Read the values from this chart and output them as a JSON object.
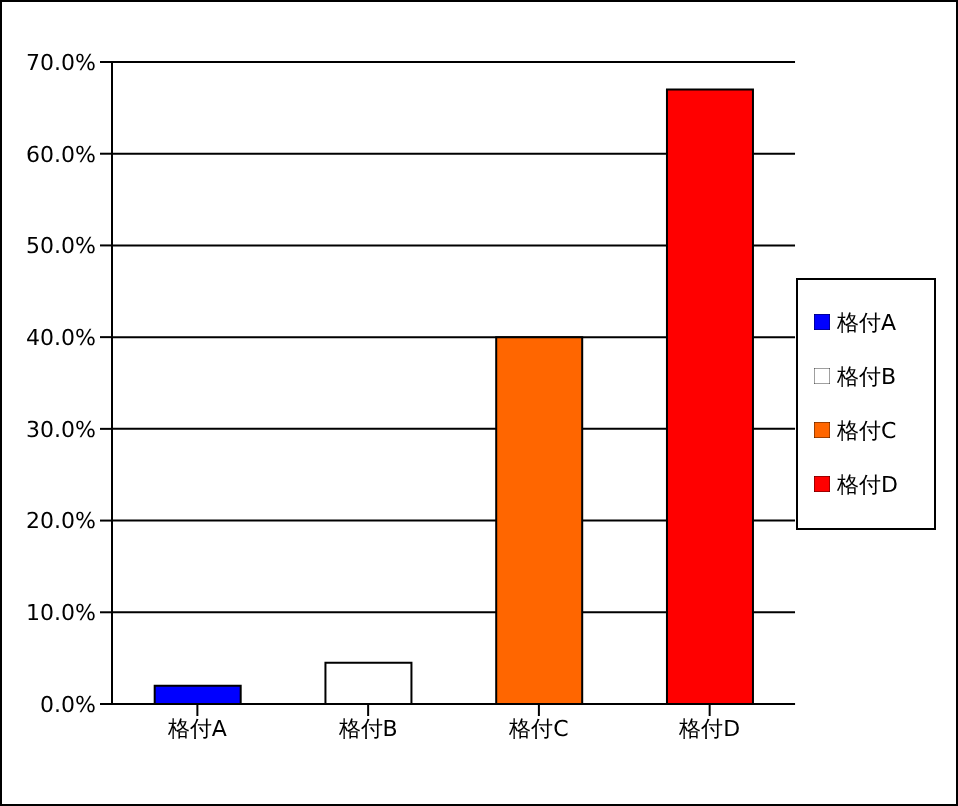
{
  "chart_data": {
    "type": "bar",
    "categories": [
      "格付A",
      "格付B",
      "格付C",
      "格付D"
    ],
    "series": [
      {
        "name": "格付A",
        "color": "#0000ff",
        "values": [
          2,
          null,
          null,
          null
        ]
      },
      {
        "name": "格付B",
        "color": "#ffffff",
        "values": [
          null,
          4.5,
          null,
          null
        ]
      },
      {
        "name": "格付C",
        "color": "#ff6600",
        "values": [
          null,
          null,
          40,
          null
        ]
      },
      {
        "name": "格付D",
        "color": "#ff0000",
        "values": [
          null,
          null,
          null,
          67
        ]
      }
    ],
    "ylim": [
      0,
      70
    ],
    "yticks": [
      {
        "value": 0,
        "label": "0.0%"
      },
      {
        "value": 10,
        "label": "10.0%"
      },
      {
        "value": 20,
        "label": "20.0%"
      },
      {
        "value": 30,
        "label": "30.0%"
      },
      {
        "value": 40,
        "label": "40.0%"
      },
      {
        "value": 50,
        "label": "50.0%"
      },
      {
        "value": 60,
        "label": "60.0%"
      },
      {
        "value": 70,
        "label": "70.0%"
      }
    ],
    "grid": "y",
    "legend": "right"
  }
}
